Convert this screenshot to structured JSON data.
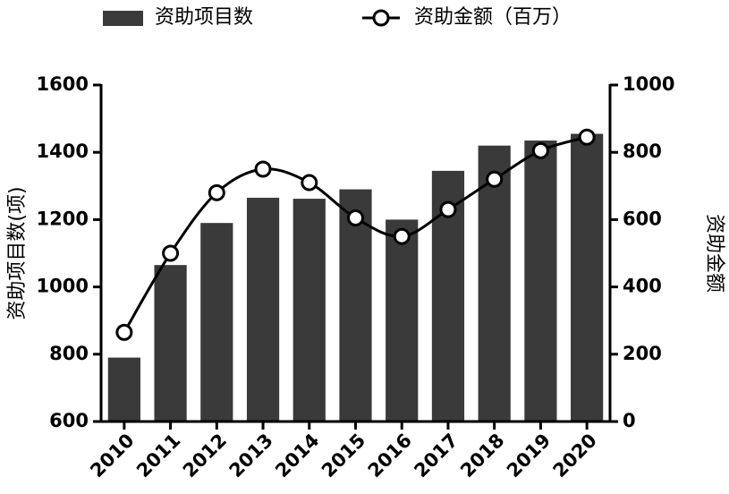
{
  "chart_data": {
    "type": "bar",
    "categories": [
      "2010",
      "2011",
      "2012",
      "2013",
      "2014",
      "2015",
      "2016",
      "2017",
      "2018",
      "2019",
      "2020"
    ],
    "series": [
      {
        "name": "资助项目数",
        "type": "bar",
        "color": "#3a3a3a",
        "axis": "y",
        "values": [
          790,
          1065,
          1190,
          1265,
          1262,
          1290,
          1200,
          1345,
          1420,
          1435,
          1455
        ]
      },
      {
        "name": "资助金额（百万）",
        "type": "line",
        "color": "#000000",
        "axis": "y2",
        "values": [
          265,
          500,
          680,
          750,
          710,
          605,
          550,
          630,
          720,
          805,
          845
        ]
      }
    ],
    "ylabel": "资助项目数(项)",
    "y2label": "资助金额",
    "ylim": [
      600,
      1600
    ],
    "yticks": [
      600,
      800,
      1000,
      1200,
      1400,
      1600
    ],
    "y2lim": [
      0,
      1000
    ],
    "y2ticks": [
      0,
      200,
      400,
      600,
      800,
      1000
    ],
    "grid": false
  }
}
